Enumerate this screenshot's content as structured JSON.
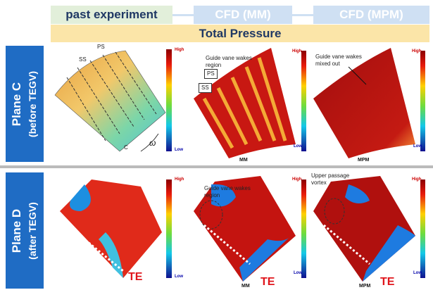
{
  "header": {
    "columns": [
      "past experiment",
      "CFD (MM)",
      "CFD (MPM)"
    ],
    "title": "Total Pressure"
  },
  "rows": [
    {
      "label": "Plane C",
      "sublabel": "(before TEGV)",
      "panels": [
        {
          "high": "High",
          "low": "Low",
          "annotations": [
            "PS",
            "SS",
            "C",
            "ω"
          ]
        },
        {
          "high": "High",
          "low": "Low",
          "annotations": [
            "Guide vane wakes region",
            "PS",
            "SS"
          ],
          "caption": "MM"
        },
        {
          "high": "High",
          "low": "Low",
          "annotations": [
            "Guide vane wakes mixed out"
          ],
          "caption": "MPM"
        }
      ]
    },
    {
      "label": "Plane D",
      "sublabel": "(after TEGV)",
      "panels": [
        {
          "high": "High",
          "low": "Low",
          "annotations": [
            "TE"
          ]
        },
        {
          "high": "High",
          "low": "Low",
          "annotations": [
            "Guide vane wakes region",
            "TE"
          ],
          "caption": "MM"
        },
        {
          "high": "High",
          "low": "Low",
          "annotations": [
            "Upper passage vortex",
            "TE"
          ],
          "caption": "MPM"
        }
      ]
    }
  ]
}
